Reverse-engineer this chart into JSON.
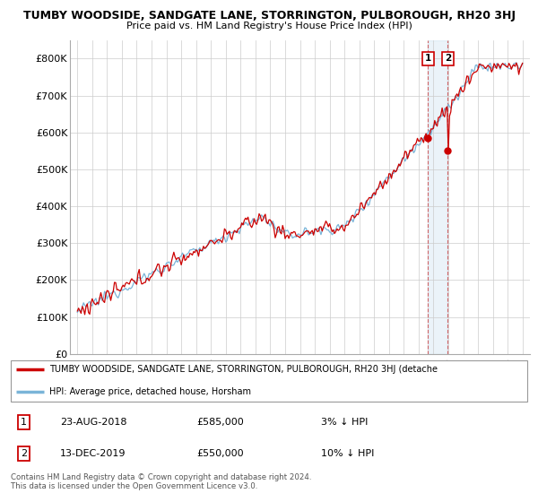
{
  "title": "TUMBY WOODSIDE, SANDGATE LANE, STORRINGTON, PULBOROUGH, RH20 3HJ",
  "subtitle": "Price paid vs. HM Land Registry's House Price Index (HPI)",
  "ylim": [
    0,
    850000
  ],
  "yticks": [
    0,
    100000,
    200000,
    300000,
    400000,
    500000,
    600000,
    700000,
    800000
  ],
  "ytick_labels": [
    "£0",
    "£100K",
    "£200K",
    "£300K",
    "£400K",
    "£500K",
    "£600K",
    "£700K",
    "£800K"
  ],
  "hpi_color": "#7ab4d8",
  "price_color": "#cc0000",
  "marker1_year": 2018.64,
  "marker2_year": 2019.96,
  "marker1_price": 585000,
  "marker2_price": 550000,
  "legend_label1": "TUMBY WOODSIDE, SANDGATE LANE, STORRINGTON, PULBOROUGH, RH20 3HJ (detache",
  "legend_label2": "HPI: Average price, detached house, Horsham",
  "table_row1": [
    "1",
    "23-AUG-2018",
    "£585,000",
    "3% ↓ HPI"
  ],
  "table_row2": [
    "2",
    "13-DEC-2019",
    "£550,000",
    "10% ↓ HPI"
  ],
  "footnote": "Contains HM Land Registry data © Crown copyright and database right 2024.\nThis data is licensed under the Open Government Licence v3.0.",
  "background_color": "#ffffff",
  "grid_color": "#cccccc",
  "xmin": 1994.5,
  "xmax": 2025.5
}
